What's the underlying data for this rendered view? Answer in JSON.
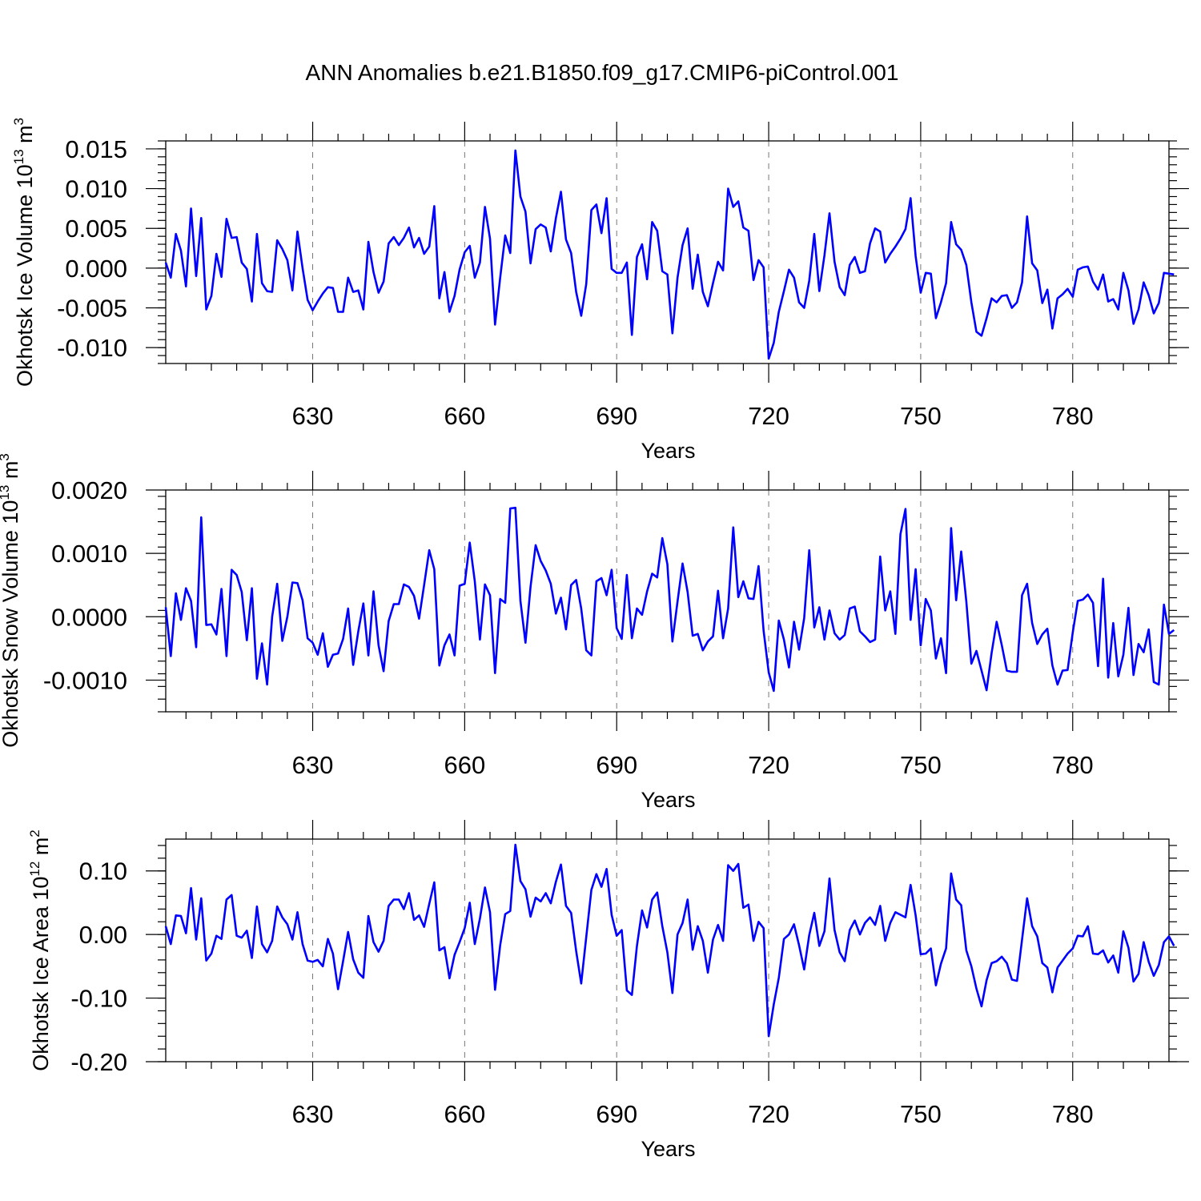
{
  "figure": {
    "title": "ANN Anomalies b.e21.B1850.f09_g17.CMIP6-piControl.001",
    "line_color": "#0000ff"
  },
  "chart_data": [
    {
      "type": "line",
      "xlabel": "Years",
      "ylabel": "Okhotsk Ice Volume 10",
      "ylabel_exp": "13",
      "ylabel_unit": " m",
      "ylabel_unit_exp": "3",
      "xlim": [
        601,
        799
      ],
      "ylim": [
        -0.012,
        0.016
      ],
      "xticks": [
        630,
        660,
        690,
        720,
        750,
        780
      ],
      "xtick_labels": [
        "630",
        "660",
        "690",
        "720",
        "750",
        "780"
      ],
      "yticks": [
        0.015,
        0.01,
        0.005,
        0.0,
        -0.005,
        -0.01
      ],
      "ytick_labels": [
        "0.015",
        "0.010",
        "0.005",
        "0.000",
        "-0.005",
        "-0.010"
      ],
      "x_start": 601,
      "values": [
        0.0007,
        -0.0012,
        0.0043,
        0.0022,
        -0.0023,
        0.0075,
        -0.001,
        0.0063,
        -0.0052,
        -0.0035,
        0.0018,
        -0.0011,
        0.0062,
        0.0038,
        0.0039,
        0.0007,
        -0.0001,
        -0.0042,
        0.0043,
        -0.0019,
        -0.0029,
        -0.003,
        0.0035,
        0.0024,
        0.001,
        -0.0028,
        0.0046,
        0.0,
        -0.004,
        -0.0053,
        -0.0042,
        -0.0032,
        -0.0024,
        -0.0025,
        -0.0055,
        -0.0055,
        -0.0012,
        -0.003,
        -0.0028,
        -0.0052,
        0.0033,
        -0.0005,
        -0.0031,
        -0.0017,
        0.0031,
        0.0039,
        0.0029,
        0.0038,
        0.0051,
        0.0026,
        0.0038,
        0.0018,
        0.0027,
        0.0078,
        -0.0038,
        -0.0005,
        -0.0055,
        -0.0035,
        -0.0002,
        0.002,
        0.0028,
        -0.0012,
        0.0007,
        0.0077,
        0.0037,
        -0.0071,
        -0.0012,
        0.0041,
        0.0019,
        0.0148,
        0.009,
        0.0071,
        0.0006,
        0.0049,
        0.0055,
        0.0051,
        0.0021,
        0.0063,
        0.0096,
        0.0036,
        0.0019,
        -0.003,
        -0.006,
        -0.002,
        0.0073,
        0.008,
        0.0044,
        0.0088,
        -0.0001,
        -0.0006,
        -0.0006,
        0.0007,
        -0.0084,
        0.0014,
        0.003,
        -0.0014,
        0.0058,
        0.0047,
        -0.0004,
        -0.0008,
        -0.0082,
        -0.0012,
        0.0029,
        0.005,
        -0.0026,
        0.0017,
        -0.003,
        -0.0048,
        -0.0019,
        0.0008,
        -0.0003,
        0.01,
        0.0077,
        0.0084,
        0.0051,
        0.0047,
        -0.0015,
        0.001,
        0.0001,
        -0.0114,
        -0.0094,
        -0.0055,
        -0.0029,
        -0.0002,
        -0.0012,
        -0.0043,
        -0.005,
        -0.0016,
        0.0043,
        -0.0029,
        0.0016,
        0.0069,
        0.0008,
        -0.0024,
        -0.0034,
        0.0004,
        0.0014,
        -0.0006,
        -0.0004,
        0.0031,
        0.005,
        0.0046,
        0.0007,
        0.0018,
        0.0027,
        0.0037,
        0.0049,
        0.0088,
        0.0015,
        -0.0031,
        -0.0006,
        -0.0007,
        -0.0063,
        -0.0043,
        -0.0019,
        0.0058,
        0.003,
        0.0023,
        0.0004,
        -0.0043,
        -0.008,
        -0.0085,
        -0.0063,
        -0.0038,
        -0.0043,
        -0.0035,
        -0.0034,
        -0.005,
        -0.0043,
        -0.0018,
        0.0065,
        0.0006,
        -0.0003,
        -0.0044,
        -0.0027,
        -0.0076,
        -0.0038,
        -0.0033,
        -0.0026,
        -0.0036,
        -0.0002,
        0.0001,
        0.0002,
        -0.0017,
        -0.0027,
        -0.0008,
        -0.0042,
        -0.0039,
        -0.0052,
        -0.0006,
        -0.0028,
        -0.007,
        -0.0052,
        -0.0018,
        -0.0034,
        -0.0057,
        -0.0044,
        -0.0006,
        -0.0007,
        -0.0008
      ]
    },
    {
      "type": "line",
      "xlabel": "Years",
      "ylabel": "Okhotsk Snow Volume 10",
      "ylabel_exp": "13",
      "ylabel_unit": " m",
      "ylabel_unit_exp": "3",
      "xlim": [
        601,
        799
      ],
      "ylim": [
        -0.0015,
        0.002
      ],
      "xticks": [
        630,
        660,
        690,
        720,
        750,
        780
      ],
      "xtick_labels": [
        "630",
        "660",
        "690",
        "720",
        "750",
        "780"
      ],
      "yticks": [
        0.002,
        0.001,
        0.0,
        -0.001
      ],
      "ytick_labels": [
        "0.0020",
        "0.0010",
        "0.0000",
        "-0.0010"
      ],
      "x_start": 601,
      "values": [
        0.00015,
        -0.00062,
        0.00037,
        -5e-05,
        0.00045,
        0.00025,
        -0.00048,
        0.00157,
        -0.00013,
        -0.00012,
        -0.00028,
        0.00044,
        -0.00062,
        0.00074,
        0.00066,
        0.00039,
        -0.00037,
        0.00045,
        -0.00098,
        -0.00042,
        -0.00107,
        0.0,
        0.00052,
        -0.00038,
        0.0,
        0.00054,
        0.00053,
        0.00026,
        -0.00034,
        -0.00041,
        -0.0006,
        -0.00026,
        -0.00079,
        -0.0006,
        -0.00058,
        -0.00035,
        0.00013,
        -0.00076,
        -0.00023,
        0.00021,
        -0.00061,
        0.0004,
        -0.00045,
        -0.00086,
        -7e-05,
        0.0002,
        0.0002,
        0.00051,
        0.00047,
        0.00033,
        -3e-05,
        0.0005,
        0.00105,
        0.00075,
        -0.00077,
        -0.00045,
        -0.00028,
        -0.00061,
        0.00049,
        0.00052,
        0.00117,
        0.00056,
        -0.00036,
        0.00051,
        0.00034,
        -0.00089,
        0.00028,
        0.00022,
        0.00171,
        0.00172,
        0.00025,
        -0.00041,
        0.00047,
        0.00113,
        0.00088,
        0.00073,
        0.00052,
        5e-05,
        0.0003,
        -0.0002,
        0.0005,
        0.00058,
        0.00013,
        -0.00053,
        -0.00061,
        0.00056,
        0.00061,
        0.00034,
        0.00074,
        -0.00018,
        -0.00035,
        0.00066,
        -0.00034,
        0.00013,
        3e-05,
        0.0004,
        0.00068,
        0.00062,
        0.00124,
        0.00083,
        -0.00039,
        0.00024,
        0.00084,
        0.00039,
        -0.0003,
        -0.00027,
        -0.00053,
        -0.00039,
        -0.00031,
        0.00041,
        -0.00034,
        0.00013,
        0.00141,
        0.00031,
        0.00056,
        0.00029,
        0.00028,
        0.0008,
        -0.00022,
        -0.00088,
        -0.00117,
        -6e-05,
        -0.00036,
        -0.0008,
        -8e-05,
        -0.00052,
        -2e-05,
        0.00105,
        -0.00017,
        0.00015,
        -0.00036,
        0.0001,
        -0.00026,
        -0.00036,
        -0.00029,
        0.00013,
        0.00016,
        -0.00023,
        -0.00031,
        -0.0004,
        -0.00036,
        0.00095,
        0.0001,
        0.0004,
        -0.00027,
        0.0013,
        0.0017,
        -5e-05,
        0.00075,
        -0.00045,
        0.00028,
        0.0001,
        -0.00066,
        -0.00034,
        -0.00089,
        0.0014,
        0.00026,
        0.00103,
        0.00024,
        -0.00074,
        -0.00054,
        -0.00085,
        -0.00116,
        -0.00057,
        -8e-05,
        -0.00045,
        -0.00085,
        -0.00087,
        -0.00087,
        0.00034,
        0.00052,
        -0.0001,
        -0.00043,
        -0.00028,
        -0.00019,
        -0.00077,
        -0.00107,
        -0.00085,
        -0.00084,
        -0.00025,
        0.00025,
        0.00027,
        0.00035,
        0.00022,
        -0.00078,
        0.0006,
        -0.00096,
        -0.0001,
        -0.00094,
        -0.0006,
        0.00014,
        -0.00092,
        -0.00043,
        -0.00056,
        -0.0002,
        -0.00103,
        -0.00107,
        0.00019,
        -0.00027,
        -0.00021
      ]
    },
    {
      "type": "line",
      "xlabel": "Years",
      "ylabel": "Okhotsk Ice Area 10",
      "ylabel_exp": "12",
      "ylabel_unit": " m",
      "ylabel_unit_exp": "2",
      "xlim": [
        601,
        799
      ],
      "ylim": [
        -0.2,
        0.15
      ],
      "xticks": [
        630,
        660,
        690,
        720,
        750,
        780
      ],
      "xtick_labels": [
        "630",
        "660",
        "690",
        "720",
        "750",
        "780"
      ],
      "yticks": [
        0.1,
        0.0,
        -0.1,
        -0.2
      ],
      "ytick_labels": [
        "0.10",
        "0.00",
        "-0.10",
        "-0.20"
      ],
      "x_start": 601,
      "values": [
        0.013,
        -0.015,
        0.03,
        0.029,
        0.002,
        0.073,
        -0.008,
        0.057,
        -0.041,
        -0.03,
        -0.002,
        -0.007,
        0.055,
        0.062,
        -0.002,
        -0.005,
        0.006,
        -0.037,
        0.044,
        -0.015,
        -0.028,
        -0.01,
        0.044,
        0.027,
        0.016,
        -0.008,
        0.035,
        -0.015,
        -0.041,
        -0.043,
        -0.04,
        -0.05,
        -0.007,
        -0.03,
        -0.086,
        -0.042,
        0.004,
        -0.039,
        -0.06,
        -0.068,
        0.029,
        -0.012,
        -0.027,
        -0.01,
        0.045,
        0.055,
        0.055,
        0.04,
        0.065,
        0.023,
        0.03,
        0.012,
        0.048,
        0.082,
        -0.025,
        -0.02,
        -0.069,
        -0.032,
        -0.012,
        0.01,
        0.05,
        -0.015,
        0.025,
        0.074,
        0.035,
        -0.087,
        -0.017,
        0.032,
        0.037,
        0.141,
        0.084,
        0.071,
        0.028,
        0.058,
        0.052,
        0.065,
        0.049,
        0.083,
        0.11,
        0.045,
        0.034,
        -0.026,
        -0.077,
        -0.004,
        0.07,
        0.095,
        0.075,
        0.103,
        0.031,
        -0.002,
        0.007,
        -0.088,
        -0.095,
        -0.018,
        0.038,
        0.011,
        0.055,
        0.066,
        0.013,
        -0.028,
        -0.092,
        0.0,
        0.018,
        0.055,
        -0.024,
        0.013,
        -0.01,
        -0.06,
        -0.008,
        0.015,
        -0.01,
        0.109,
        0.1,
        0.111,
        0.042,
        0.047,
        -0.01,
        0.02,
        0.01,
        -0.16,
        -0.11,
        -0.068,
        -0.007,
        0.0,
        0.016,
        -0.017,
        -0.055,
        -0.001,
        0.034,
        -0.018,
        0.005,
        0.088,
        0.007,
        -0.028,
        -0.042,
        0.007,
        0.022,
        0.0,
        0.018,
        0.027,
        0.015,
        0.045,
        -0.01,
        0.018,
        0.035,
        0.031,
        0.027,
        0.078,
        0.03,
        -0.031,
        -0.03,
        -0.022,
        -0.08,
        -0.046,
        -0.022,
        0.096,
        0.055,
        0.046,
        -0.025,
        -0.05,
        -0.085,
        -0.113,
        -0.072,
        -0.045,
        -0.042,
        -0.035,
        -0.045,
        -0.071,
        -0.073,
        -0.008,
        0.057,
        0.013,
        -0.003,
        -0.045,
        -0.052,
        -0.091,
        -0.052,
        -0.041,
        -0.03,
        -0.022,
        -0.002,
        -0.003,
        0.013,
        -0.03,
        -0.031,
        -0.025,
        -0.044,
        -0.033,
        -0.06,
        0.005,
        -0.021,
        -0.074,
        -0.062,
        -0.012,
        -0.043,
        -0.065,
        -0.048,
        -0.012,
        -0.003,
        -0.018
      ]
    }
  ]
}
